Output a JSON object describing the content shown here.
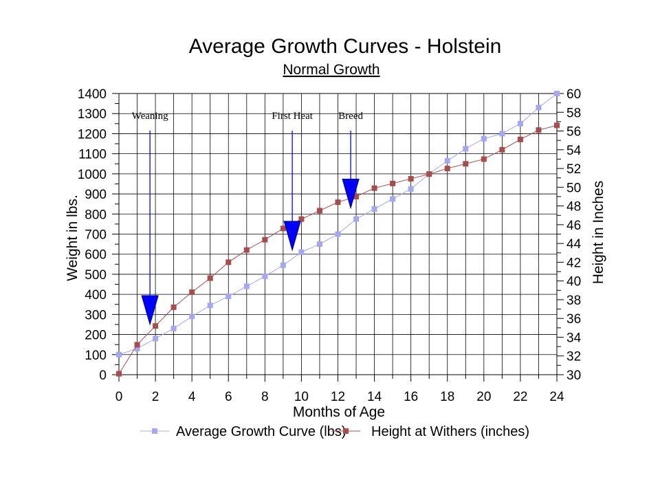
{
  "chart_data": {
    "type": "line",
    "title": "Average Growth Curves - Holstein",
    "subtitle": "Normal Growth",
    "xlabel": "Months of Age",
    "ylabel": "Weight in lbs.",
    "y2label": "Height in Inches",
    "xlim": [
      0,
      24
    ],
    "ylim": [
      0,
      1400
    ],
    "y2lim": [
      30,
      60
    ],
    "x_ticks": [
      0,
      2,
      4,
      6,
      8,
      10,
      12,
      14,
      16,
      18,
      20,
      22,
      24
    ],
    "y_ticks": [
      0,
      100,
      200,
      300,
      400,
      500,
      600,
      700,
      800,
      900,
      1000,
      1100,
      1200,
      1300,
      1400
    ],
    "y2_ticks": [
      30,
      32,
      34,
      36,
      38,
      40,
      42,
      44,
      46,
      48,
      50,
      52,
      54,
      56,
      58,
      60
    ],
    "x_tick_labels": [
      "0",
      "2",
      "4",
      "6",
      "8",
      "10",
      "12",
      "14",
      "16",
      "18",
      "20",
      "22",
      "24"
    ],
    "y_tick_labels": [
      "0",
      "100",
      "200",
      "300",
      "400",
      "500",
      "600",
      "700",
      "800",
      "900",
      "1000",
      "1100",
      "1200",
      "1300",
      "1400"
    ],
    "y2_tick_labels": [
      "30",
      "32",
      "34",
      "36",
      "38",
      "40",
      "42",
      "44",
      "46",
      "48",
      "50",
      "52",
      "54",
      "56",
      "58",
      "60"
    ],
    "grid": true,
    "legend_position": "bottom",
    "series": [
      {
        "name": "Average Growth Curve (lbs)",
        "axis": "left",
        "color": "#a4a8f2",
        "x": [
          0,
          1,
          2,
          3,
          4,
          5,
          6,
          7,
          8,
          9,
          10,
          11,
          12,
          13,
          14,
          15,
          16,
          17,
          18,
          19,
          20,
          21,
          22,
          23,
          24
        ],
        "values": [
          100,
          130,
          180,
          230,
          290,
          345,
          390,
          440,
          490,
          545,
          610,
          650,
          700,
          775,
          825,
          875,
          925,
          1000,
          1065,
          1125,
          1175,
          1200,
          1250,
          1330,
          1400
        ]
      },
      {
        "name": "Height at Withers (inches)",
        "axis": "right",
        "color": "#a84c4c",
        "x": [
          0,
          1,
          2,
          3,
          4,
          5,
          6,
          7,
          8,
          9,
          10,
          11,
          12,
          13,
          14,
          15,
          16,
          17,
          18,
          19,
          20,
          21,
          22,
          23,
          24
        ],
        "values": [
          30.1,
          33.2,
          35.2,
          37.2,
          38.8,
          40.3,
          42.0,
          43.3,
          44.4,
          45.6,
          46.6,
          47.5,
          48.4,
          49.0,
          49.9,
          50.4,
          50.9,
          51.4,
          52.0,
          52.5,
          53.0,
          54.0,
          55.1,
          56.1,
          56.6
        ]
      }
    ],
    "annotations": [
      {
        "text": "Weaning",
        "x": 1.7,
        "y": 250
      },
      {
        "text": "First Heat",
        "x": 9.5,
        "y": 620
      },
      {
        "text": "Breed",
        "x": 12.7,
        "y": 830
      }
    ]
  }
}
